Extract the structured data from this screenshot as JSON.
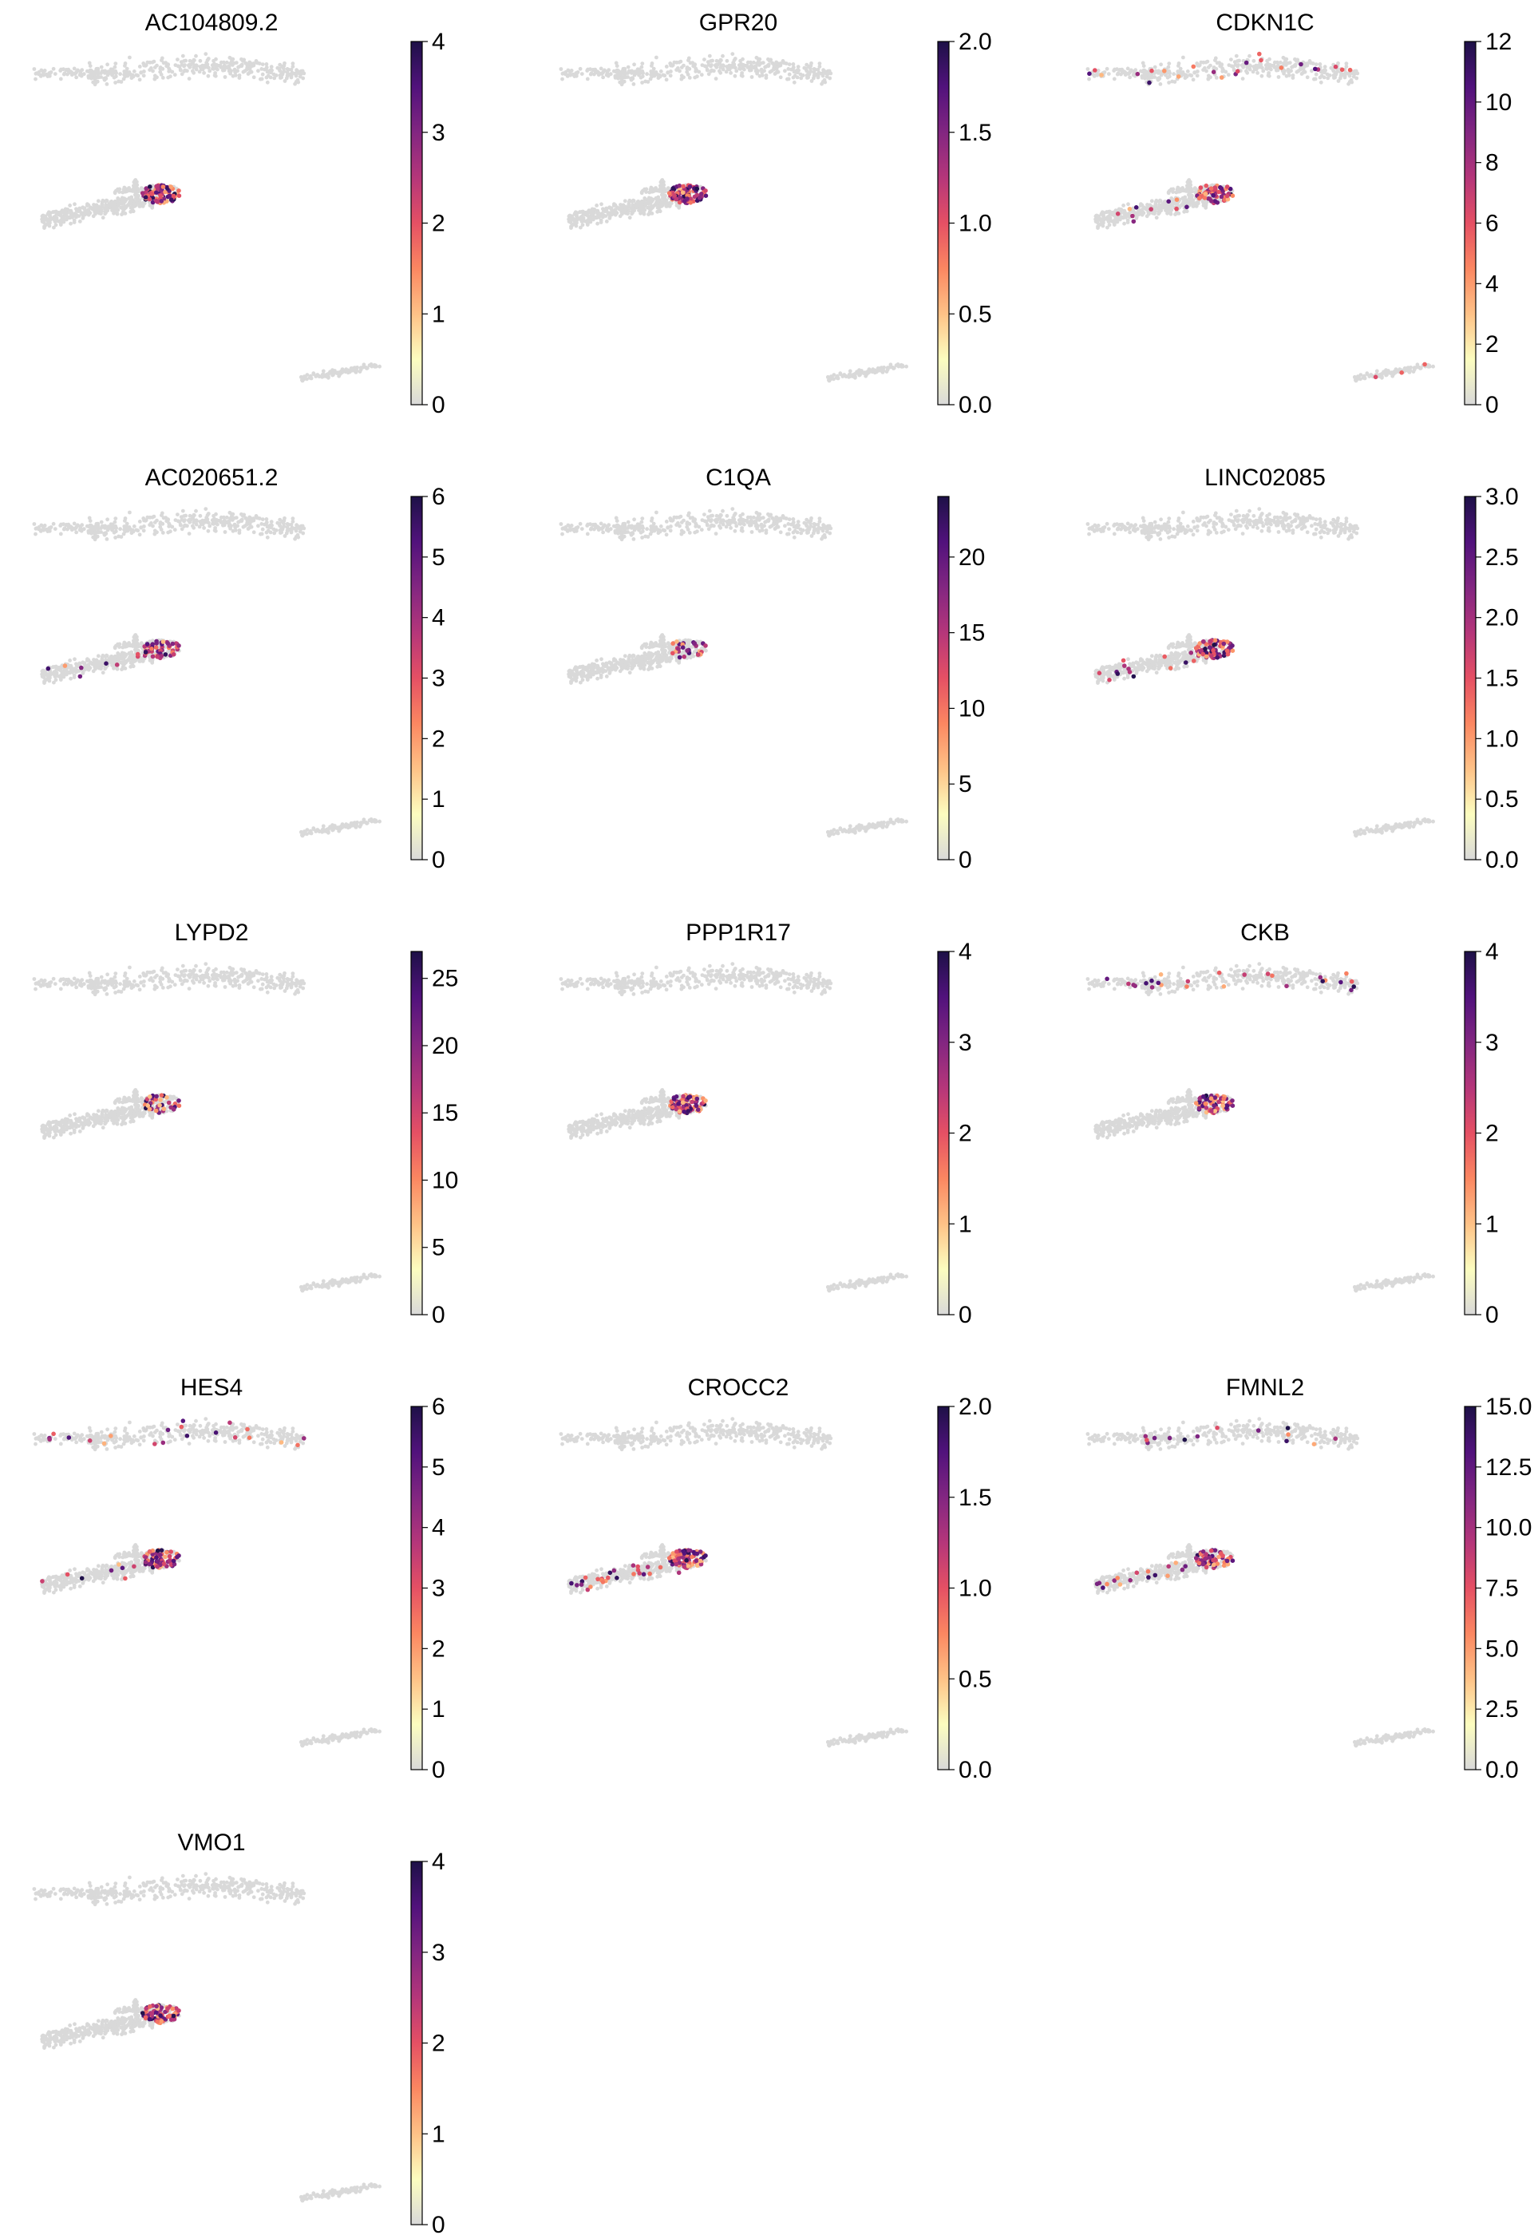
{
  "figure": {
    "colormap": [
      "#fcfdbf",
      "#fec287",
      "#fb8761",
      "#e55064",
      "#b5367a",
      "#822681",
      "#51127c",
      "#1d1147"
    ],
    "zero_color": "#d9d9d9",
    "background_point_color": "#d9d9d9"
  },
  "chart_data": [
    {
      "type": "scatter",
      "title": "AC104809.2",
      "colorbar": {
        "ticks": [
          "0",
          "1",
          "2",
          "3",
          "4"
        ],
        "range": [
          0,
          4
        ]
      },
      "clusters_expressed": [
        "middle-right-lobe"
      ],
      "intensity": 0.6
    },
    {
      "type": "scatter",
      "title": "GPR20",
      "colorbar": {
        "ticks": [
          "0.0",
          "0.5",
          "1.0",
          "1.5",
          "2.0"
        ],
        "range": [
          0,
          2
        ]
      },
      "clusters_expressed": [
        "middle-right-lobe"
      ],
      "intensity": 0.65
    },
    {
      "type": "scatter",
      "title": "CDKN1C",
      "colorbar": {
        "ticks": [
          "0",
          "2",
          "4",
          "6",
          "8",
          "10",
          "12"
        ],
        "range": [
          0,
          12
        ]
      },
      "clusters_expressed": [
        "middle-right-lobe",
        "middle-left",
        "top-cluster",
        "bottom-right"
      ],
      "intensity": 0.45
    },
    {
      "type": "scatter",
      "title": "AC020651.2",
      "colorbar": {
        "ticks": [
          "0",
          "1",
          "2",
          "3",
          "4",
          "5",
          "6"
        ],
        "range": [
          0,
          6
        ]
      },
      "clusters_expressed": [
        "middle-right-lobe",
        "middle-left"
      ],
      "intensity": 0.4
    },
    {
      "type": "scatter",
      "title": "C1QA",
      "colorbar": {
        "ticks": [
          "0",
          "5",
          "10",
          "15",
          "20"
        ],
        "range": [
          0,
          24
        ]
      },
      "clusters_expressed": [
        "middle-right-lobe"
      ],
      "intensity": 0.25
    },
    {
      "type": "scatter",
      "title": "LINC02085",
      "colorbar": {
        "ticks": [
          "0.0",
          "0.5",
          "1.0",
          "1.5",
          "2.0",
          "2.5",
          "3.0"
        ],
        "range": [
          0,
          3
        ]
      },
      "clusters_expressed": [
        "middle-right-lobe",
        "middle-left"
      ],
      "intensity": 0.6
    },
    {
      "type": "scatter",
      "title": "LYPD2",
      "colorbar": {
        "ticks": [
          "0",
          "5",
          "10",
          "15",
          "20",
          "25"
        ],
        "range": [
          0,
          27
        ]
      },
      "clusters_expressed": [
        "middle-right-lobe"
      ],
      "intensity": 0.3
    },
    {
      "type": "scatter",
      "title": "PPP1R17",
      "colorbar": {
        "ticks": [
          "0",
          "1",
          "2",
          "3",
          "4"
        ],
        "range": [
          0,
          4
        ]
      },
      "clusters_expressed": [
        "middle-right-lobe"
      ],
      "intensity": 0.55
    },
    {
      "type": "scatter",
      "title": "CKB",
      "colorbar": {
        "ticks": [
          "0",
          "1",
          "2",
          "3",
          "4"
        ],
        "range": [
          0,
          4
        ]
      },
      "clusters_expressed": [
        "middle-right-lobe",
        "top-cluster"
      ],
      "intensity": 0.6
    },
    {
      "type": "scatter",
      "title": "HES4",
      "colorbar": {
        "ticks": [
          "0",
          "1",
          "2",
          "3",
          "4",
          "5",
          "6"
        ],
        "range": [
          0,
          6
        ]
      },
      "clusters_expressed": [
        "middle-right-lobe",
        "middle-left",
        "top-cluster"
      ],
      "intensity": 0.45
    },
    {
      "type": "scatter",
      "title": "CROCC2",
      "colorbar": {
        "ticks": [
          "0.0",
          "0.5",
          "1.0",
          "1.5",
          "2.0"
        ],
        "range": [
          0,
          2
        ]
      },
      "clusters_expressed": [
        "middle-right-lobe",
        "middle-left"
      ],
      "intensity": 0.7
    },
    {
      "type": "scatter",
      "title": "FMNL2",
      "colorbar": {
        "ticks": [
          "0.0",
          "2.5",
          "5.0",
          "7.5",
          "10.0",
          "12.5",
          "15.0"
        ],
        "range": [
          0,
          15
        ]
      },
      "clusters_expressed": [
        "middle-right-lobe",
        "middle-left",
        "top-cluster"
      ],
      "intensity": 0.45
    },
    {
      "type": "scatter",
      "title": "VMO1",
      "colorbar": {
        "ticks": [
          "0",
          "1",
          "2",
          "3",
          "4"
        ],
        "range": [
          0,
          4
        ]
      },
      "clusters_expressed": [
        "middle-right-lobe"
      ],
      "intensity": 0.6
    }
  ]
}
